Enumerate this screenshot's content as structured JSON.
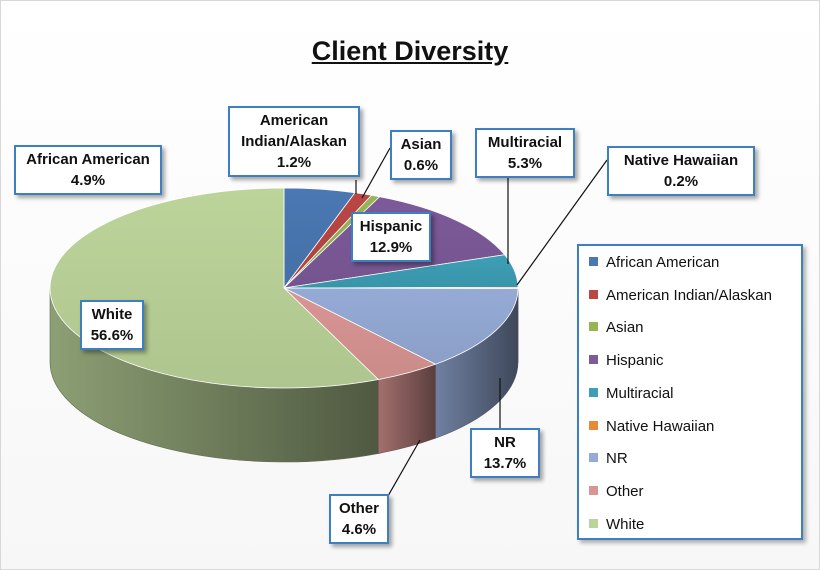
{
  "chart_data": {
    "type": "pie",
    "title": "Client Diversity",
    "slices": [
      {
        "label": "African American",
        "value": 4.9,
        "value_label": "4.9%",
        "color": "#4a78b3"
      },
      {
        "label": "American Indian/Alaskan",
        "value": 1.2,
        "value_label": "1.2%",
        "color": "#b94744"
      },
      {
        "label": "Asian",
        "value": 0.6,
        "value_label": "0.6%",
        "color": "#97b555"
      },
      {
        "label": "Hispanic",
        "value": 12.9,
        "value_label": "12.9%",
        "color": "#7d5a9a"
      },
      {
        "label": "Multiracial",
        "value": 5.3,
        "value_label": "5.3%",
        "color": "#3d9fb6"
      },
      {
        "label": "Native Hawaiian",
        "value": 0.2,
        "value_label": "0.2%",
        "color": "#e8893a"
      },
      {
        "label": "NR",
        "value": 13.7,
        "value_label": "13.7%",
        "color": "#95abd6"
      },
      {
        "label": "Other",
        "value": 4.6,
        "value_label": "4.6%",
        "color": "#d99593"
      },
      {
        "label": "White",
        "value": 56.6,
        "value_label": "56.6%",
        "color": "#bcd49a"
      }
    ],
    "data_label_lines": {
      "American Indian/Alaskan": [
        "American",
        "Indian/Alaskan"
      ]
    },
    "legend_position": "right",
    "style": "3d-pie"
  }
}
